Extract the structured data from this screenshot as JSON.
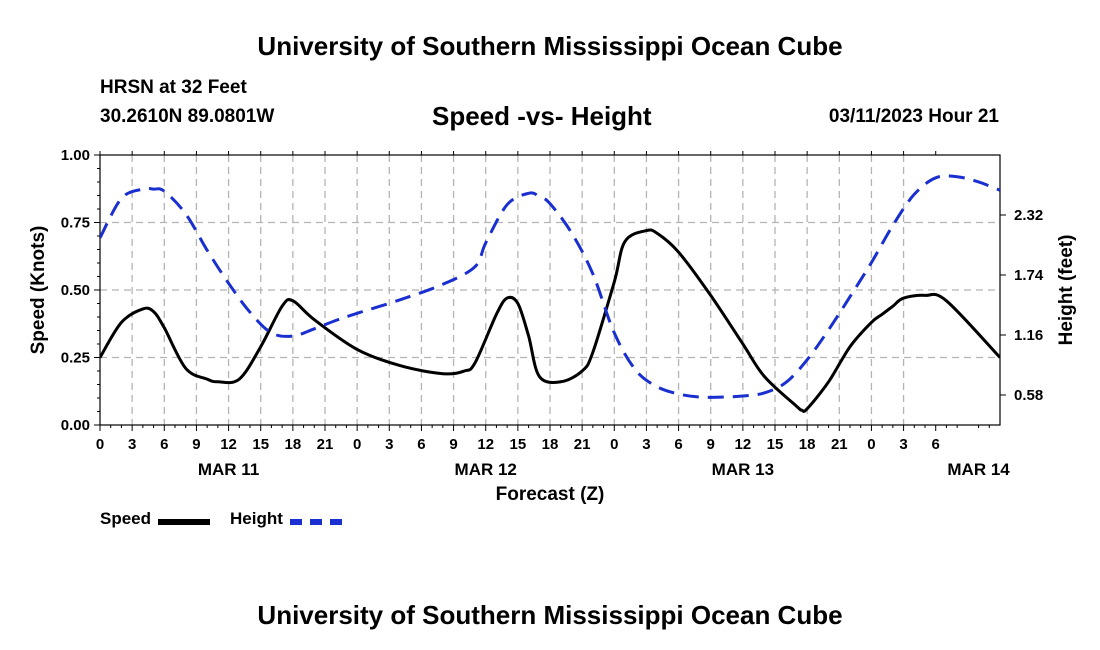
{
  "header": {
    "title": "University of Southern Mississippi Ocean Cube",
    "station": "HRSN at 32 Feet",
    "coords": "30.2610N  89.0801W",
    "chart_title": "Speed -vs- Height",
    "date": "03/11/2023 Hour 21"
  },
  "legend": {
    "speed": "Speed",
    "height": "Height"
  },
  "footer": {
    "title": "University of Southern Mississippi Ocean Cube"
  },
  "chart_data": {
    "type": "line",
    "title": "Speed -vs- Height",
    "xlabel": "Forecast (Z)",
    "ylabel": "Speed (Knots)",
    "y2label": "Height (feet)",
    "x_range_hours": [
      0,
      84
    ],
    "x_tick_step_hours": 3,
    "x_tick_labels": [
      "0",
      "3",
      "6",
      "9",
      "12",
      "15",
      "18",
      "21",
      "0",
      "3",
      "6",
      "9",
      "12",
      "15",
      "18",
      "21",
      "0",
      "3",
      "6",
      "9",
      "12",
      "15",
      "18",
      "21",
      "0",
      "3",
      "6"
    ],
    "day_labels": [
      {
        "hour": 12,
        "label": "MAR 11"
      },
      {
        "hour": 36,
        "label": "MAR 12"
      },
      {
        "hour": 60,
        "label": "MAR 13"
      },
      {
        "hour": 82,
        "label": "MAR 14"
      }
    ],
    "ylim": [
      0,
      1
    ],
    "y_ticks": [
      0,
      0.25,
      0.5,
      0.75,
      1.0
    ],
    "y_tick_labels": [
      "0.00",
      "0.25",
      "0.50",
      "0.75",
      "1.00"
    ],
    "y2lim": [
      0.29,
      2.9
    ],
    "y2_ticks": [
      0.58,
      1.16,
      1.74,
      2.32
    ],
    "y2_tick_labels": [
      "0.58",
      "1.16",
      "1.74",
      "2.32"
    ],
    "grid": true,
    "legend_position": "bottom-left",
    "series": [
      {
        "name": "Speed",
        "axis": "left",
        "color": "#000000",
        "style": "solid",
        "x": [
          0,
          2,
          4,
          5,
          6,
          8,
          10,
          11,
          13,
          15,
          17,
          18,
          20,
          24,
          28,
          32,
          34,
          35,
          37,
          38,
          39,
          40,
          41,
          43,
          45,
          46,
          48,
          49,
          51,
          52,
          54,
          57,
          60,
          62,
          65,
          65.5,
          66,
          68,
          70,
          72,
          73,
          74,
          75,
          77,
          79,
          84
        ],
        "values": [
          0.25,
          0.38,
          0.43,
          0.42,
          0.36,
          0.21,
          0.17,
          0.16,
          0.17,
          0.29,
          0.44,
          0.46,
          0.39,
          0.28,
          0.22,
          0.19,
          0.2,
          0.23,
          0.41,
          0.47,
          0.45,
          0.33,
          0.18,
          0.16,
          0.2,
          0.27,
          0.53,
          0.68,
          0.72,
          0.71,
          0.64,
          0.48,
          0.3,
          0.18,
          0.07,
          0.055,
          0.06,
          0.16,
          0.29,
          0.38,
          0.41,
          0.44,
          0.47,
          0.48,
          0.46,
          0.25
        ]
      },
      {
        "name": "Height",
        "axis": "right",
        "color": "#1a2fd0",
        "style": "dashed",
        "x": [
          0,
          2,
          4,
          5,
          6,
          8,
          10,
          12,
          14,
          16,
          18,
          20,
          22,
          24,
          28,
          32,
          35,
          36,
          38,
          40,
          41,
          42,
          44,
          46,
          48,
          50,
          52,
          54,
          56,
          58,
          60,
          62,
          64,
          66,
          68,
          70,
          72,
          74,
          76,
          78,
          80,
          82,
          83,
          84
        ],
        "values": [
          2.1,
          2.48,
          2.57,
          2.57,
          2.55,
          2.33,
          1.98,
          1.66,
          1.38,
          1.18,
          1.15,
          1.22,
          1.3,
          1.37,
          1.5,
          1.65,
          1.82,
          2.05,
          2.42,
          2.53,
          2.5,
          2.43,
          2.15,
          1.75,
          1.18,
          0.82,
          0.66,
          0.59,
          0.56,
          0.56,
          0.57,
          0.6,
          0.7,
          0.92,
          1.21,
          1.53,
          1.86,
          2.22,
          2.52,
          2.68,
          2.69,
          2.64,
          2.6,
          2.56
        ]
      }
    ]
  }
}
